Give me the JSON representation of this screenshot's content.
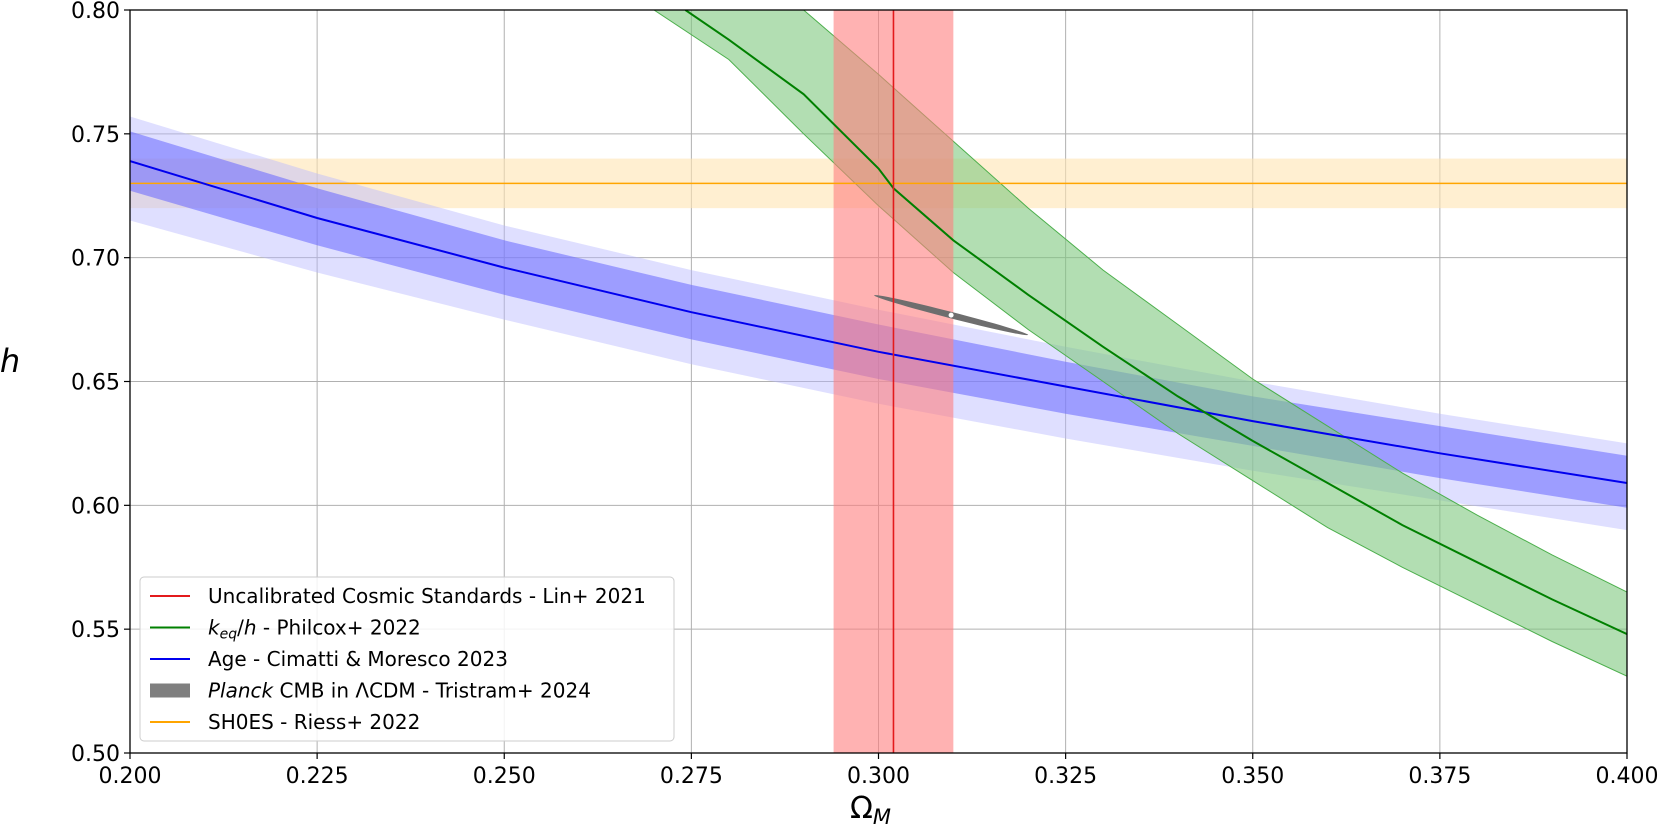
{
  "chart_data": {
    "type": "line",
    "xlabel": "Ω_M",
    "xlabel_main": "Ω",
    "xlabel_sub": "M",
    "ylabel": "h",
    "xlim": [
      0.2,
      0.4
    ],
    "ylim": [
      0.5,
      0.8
    ],
    "x_ticks": [
      0.2,
      0.225,
      0.25,
      0.275,
      0.3,
      0.325,
      0.35,
      0.375,
      0.4
    ],
    "x_tick_labels": [
      "0.200",
      "0.225",
      "0.250",
      "0.275",
      "0.300",
      "0.325",
      "0.350",
      "0.375",
      "0.400"
    ],
    "y_ticks": [
      0.5,
      0.55,
      0.6,
      0.65,
      0.7,
      0.75,
      0.8
    ],
    "y_tick_labels": [
      "0.50",
      "0.55",
      "0.60",
      "0.65",
      "0.70",
      "0.75",
      "0.80"
    ],
    "grid": true,
    "legend_position": "lower-left",
    "legend": [
      {
        "key": "lin",
        "parts": [
          {
            "t": "Uncalibrated Cosmic Standards - Lin+ 2021"
          }
        ],
        "swatch": "line",
        "color": "#e31a1c"
      },
      {
        "key": "philcox",
        "parts": [
          {
            "t": "k",
            "style": "italic"
          },
          {
            "t": "eq",
            "style": "italic-sub"
          },
          {
            "t": "/"
          },
          {
            "t": "h",
            "style": "italic"
          },
          {
            "t": " - Philcox+ 2022"
          }
        ],
        "swatch": "line",
        "color": "#008000"
      },
      {
        "key": "age",
        "parts": [
          {
            "t": "Age - Cimatti & Moresco 2023"
          }
        ],
        "swatch": "line",
        "color": "#0000ee"
      },
      {
        "key": "planck",
        "parts": [
          {
            "t": "Planck",
            "style": "italic"
          },
          {
            "t": " CMB in ΛCDM - Tristram+ 2024"
          }
        ],
        "swatch": "patch",
        "color": "#7f7f7f"
      },
      {
        "key": "shoes",
        "parts": [
          {
            "t": "SH0ES - Riess+ 2022"
          }
        ],
        "swatch": "line",
        "color": "#ffa500"
      }
    ],
    "series": [
      {
        "key": "shoes",
        "name": "SH0ES - Riess+ 2022",
        "kind": "horizontal-band",
        "color": "#ffa500",
        "band_color": "#ffe5b3",
        "y": 0.73,
        "band": [
          0.72,
          0.74
        ]
      },
      {
        "key": "lin",
        "name": "Uncalibrated Cosmic Standards - Lin+ 2021",
        "kind": "vertical-band",
        "color": "#e31a1c",
        "band_color": "#ff7f7f",
        "x": 0.302,
        "band": [
          0.294,
          0.31
        ]
      },
      {
        "key": "age",
        "name": "Age - Cimatti & Moresco 2023",
        "kind": "curve-band",
        "color": "#0000ee",
        "band_color": "#6666ff",
        "outer_band_color": "#b8b8ff",
        "x": [
          0.2,
          0.225,
          0.25,
          0.275,
          0.3,
          0.325,
          0.35,
          0.375,
          0.4
        ],
        "y": [
          0.739,
          0.716,
          0.696,
          0.678,
          0.662,
          0.648,
          0.634,
          0.621,
          0.609
        ],
        "lower": [
          0.727,
          0.705,
          0.685,
          0.667,
          0.651,
          0.637,
          0.624,
          0.611,
          0.599
        ],
        "upper": [
          0.751,
          0.728,
          0.707,
          0.689,
          0.673,
          0.658,
          0.644,
          0.632,
          0.62
        ],
        "outer_lower": [
          0.715,
          0.694,
          0.675,
          0.657,
          0.641,
          0.627,
          0.614,
          0.602,
          0.59
        ],
        "outer_upper": [
          0.757,
          0.734,
          0.713,
          0.695,
          0.679,
          0.664,
          0.65,
          0.637,
          0.625
        ]
      },
      {
        "key": "philcox",
        "name": "k_eq/h - Philcox+ 2022",
        "kind": "curve-band",
        "color": "#008000",
        "band_color": "#7ec87e",
        "x": [
          0.2742,
          0.28,
          0.29,
          0.3,
          0.302,
          0.31,
          0.32,
          0.33,
          0.34,
          0.35,
          0.36,
          0.37,
          0.38,
          0.39,
          0.4
        ],
        "y": [
          0.8,
          0.788,
          0.766,
          0.736,
          0.728,
          0.707,
          0.685,
          0.664,
          0.644,
          0.626,
          0.609,
          0.592,
          0.577,
          0.562,
          0.548
        ],
        "x_band": [
          0.266,
          0.27,
          0.28,
          0.29,
          0.3,
          0.31,
          0.32,
          0.33,
          0.34,
          0.35,
          0.36,
          0.37,
          0.38,
          0.39,
          0.4
        ],
        "lower": [
          0.8,
          0.8,
          0.78,
          0.75,
          0.721,
          0.694,
          0.671,
          0.65,
          0.629,
          0.61,
          0.591,
          0.575,
          0.56,
          0.545,
          0.531
        ],
        "upper": [
          0.8,
          0.8,
          0.8,
          0.8,
          0.774,
          0.747,
          0.72,
          0.695,
          0.673,
          0.651,
          0.632,
          0.613,
          0.596,
          0.58,
          0.565
        ]
      },
      {
        "key": "planck",
        "name": "Planck CMB in ΛCDM - Tristram+ 2024",
        "kind": "ellipse",
        "color": "#6e6e6e",
        "center": [
          0.3097,
          0.6768
        ],
        "x_range": [
          0.2994,
          0.32
        ],
        "y_range": [
          0.6688,
          0.6848
        ],
        "point_color": "#ffffff"
      }
    ]
  }
}
